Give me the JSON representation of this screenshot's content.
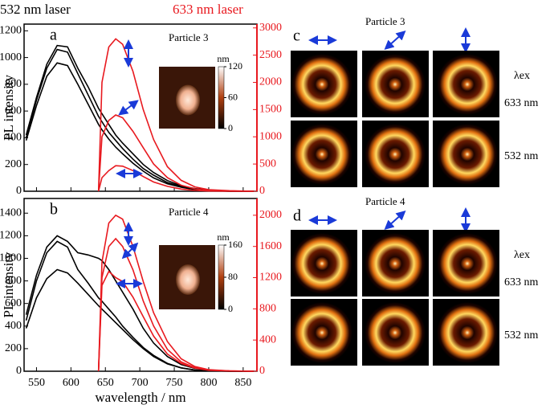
{
  "chart_data": [
    {
      "type": "line",
      "panel_label": "a",
      "annotation": "Particle 3",
      "xtick_labels": false,
      "x": [
        535,
        550,
        565,
        580,
        595,
        610,
        625,
        640,
        645,
        655,
        665,
        675,
        690,
        705,
        720,
        740,
        760,
        780,
        800,
        830,
        865
      ],
      "xlim": [
        532,
        870
      ],
      "xticks": [
        550,
        600,
        650,
        700,
        750,
        800,
        850
      ],
      "ylim": [
        0,
        1250
      ],
      "yticks": [
        0,
        200,
        400,
        600,
        800,
        1000,
        1200
      ],
      "ylabel": "PL intensity",
      "y2lim": [
        0,
        3070
      ],
      "y2ticks": [
        0,
        500,
        1000,
        1500,
        2000,
        2500,
        3000
      ],
      "series": [
        {
          "color": "#000000",
          "values": [
            420,
            700,
            950,
            1090,
            1080,
            920,
            780,
            620,
            580,
            500,
            420,
            360,
            280,
            200,
            140,
            80,
            40,
            20,
            10,
            0,
            0
          ]
        },
        {
          "color": "#000000",
          "values": [
            400,
            680,
            920,
            1060,
            1040,
            880,
            720,
            560,
            520,
            440,
            380,
            320,
            240,
            170,
            120,
            65,
            35,
            15,
            8,
            0,
            0
          ]
        },
        {
          "color": "#000000",
          "values": [
            380,
            640,
            860,
            960,
            940,
            800,
            650,
            500,
            460,
            390,
            330,
            280,
            210,
            150,
            100,
            55,
            30,
            12,
            5,
            0,
            0
          ]
        },
        {
          "color": "#e8191f",
          "axis": "y2",
          "values": [
            null,
            null,
            null,
            null,
            null,
            null,
            null,
            0,
            2000,
            2650,
            2800,
            2700,
            2200,
            1500,
            950,
            450,
            200,
            80,
            30,
            10,
            0
          ]
        },
        {
          "color": "#e8191f",
          "axis": "y2",
          "values": [
            null,
            null,
            null,
            null,
            null,
            null,
            null,
            0,
            1000,
            1300,
            1400,
            1350,
            1100,
            800,
            500,
            250,
            110,
            45,
            15,
            5,
            0
          ]
        },
        {
          "color": "#e8191f",
          "axis": "y2",
          "values": [
            null,
            null,
            null,
            null,
            null,
            null,
            null,
            0,
            250,
            380,
            470,
            460,
            380,
            270,
            170,
            90,
            40,
            15,
            5,
            0,
            0
          ]
        }
      ],
      "inset_colorbar": {
        "label": "nm",
        "lim": [
          0,
          120
        ],
        "ticks": [
          0,
          60,
          120
        ]
      }
    },
    {
      "type": "line",
      "panel_label": "b",
      "annotation": "Particle 4",
      "xtick_labels": true,
      "xlabel": "wavelength / nm",
      "x": [
        535,
        550,
        565,
        580,
        595,
        610,
        625,
        640,
        645,
        655,
        665,
        675,
        690,
        705,
        720,
        740,
        760,
        780,
        800,
        830,
        865
      ],
      "xlim": [
        532,
        870
      ],
      "xticks": [
        550,
        600,
        650,
        700,
        750,
        800,
        850
      ],
      "ylim": [
        0,
        1530
      ],
      "yticks": [
        0,
        200,
        400,
        600,
        800,
        1000,
        1200,
        1400
      ],
      "ylabel": "PL intensity",
      "y2lim": [
        0,
        2215
      ],
      "y2ticks": [
        0,
        400,
        800,
        1200,
        1600,
        2000
      ],
      "series": [
        {
          "color": "#000000",
          "values": [
            500,
            850,
            1100,
            1200,
            1150,
            1050,
            1030,
            1000,
            980,
            900,
            800,
            700,
            550,
            380,
            250,
            130,
            60,
            25,
            10,
            0,
            0
          ]
        },
        {
          "color": "#000000",
          "values": [
            450,
            800,
            1050,
            1150,
            1100,
            900,
            780,
            650,
            620,
            550,
            480,
            400,
            300,
            210,
            140,
            70,
            30,
            10,
            5,
            0,
            0
          ]
        },
        {
          "color": "#000000",
          "values": [
            380,
            650,
            820,
            900,
            870,
            780,
            680,
            580,
            550,
            490,
            430,
            370,
            280,
            200,
            130,
            65,
            30,
            10,
            5,
            0,
            0
          ]
        },
        {
          "color": "#e8191f",
          "axis": "y2",
          "values": [
            null,
            null,
            null,
            null,
            null,
            null,
            null,
            0,
            1400,
            1900,
            2000,
            1950,
            1600,
            1150,
            750,
            380,
            160,
            60,
            20,
            5,
            0
          ]
        },
        {
          "color": "#e8191f",
          "axis": "y2",
          "values": [
            null,
            null,
            null,
            null,
            null,
            null,
            null,
            0,
            1200,
            1600,
            1700,
            1600,
            1300,
            900,
            580,
            280,
            120,
            45,
            15,
            5,
            0
          ]
        },
        {
          "color": "#e8191f",
          "axis": "y2",
          "values": [
            null,
            null,
            null,
            null,
            null,
            null,
            null,
            0,
            1100,
            1280,
            1200,
            1150,
            950,
            700,
            450,
            220,
            100,
            40,
            12,
            3,
            0
          ]
        }
      ],
      "inset_colorbar": {
        "label": "nm",
        "lim": [
          0,
          160
        ],
        "ticks": [
          0,
          80,
          160
        ]
      }
    }
  ],
  "header": {
    "left": "532 nm laser",
    "right": "633 nm laser"
  },
  "panels": [
    {
      "label": "c",
      "title": "Particle 3",
      "excitation": "λex",
      "rows": [
        "633 nm",
        "532 nm"
      ]
    },
    {
      "label": "d",
      "title": "Particle 4",
      "excitation": "λex",
      "rows": [
        "633 nm",
        "532 nm"
      ]
    }
  ]
}
